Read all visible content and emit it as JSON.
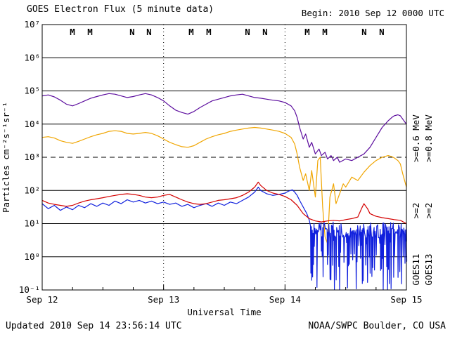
{
  "header": {
    "title": "GOES Electron Flux (5 minute data)",
    "begin": "Begin: 2010 Sep 12 0000 UTC"
  },
  "footer": {
    "updated": "Updated 2010 Sep 14 23:56:14 UTC",
    "source": "NOAA/SWPC Boulder, CO USA"
  },
  "colors": {
    "purple": "#5c0d9e",
    "orange": "#f0a500",
    "blue": "#1020dd",
    "red": "#d40000",
    "grid": "#000000",
    "text": "#000000",
    "background": "#ffffff"
  },
  "chart_data": {
    "type": "line",
    "title": "GOES Electron Flux (5 minute data)",
    "xlabel": "Universal Time",
    "ylabel": "Particles cm⁻²s⁻¹sr⁻¹",
    "x_axis": {
      "range_days": [
        0,
        3
      ],
      "ticks": [
        {
          "t": 0,
          "label": "Sep 12"
        },
        {
          "t": 1,
          "label": "Sep 13"
        },
        {
          "t": 2,
          "label": "Sep 14"
        },
        {
          "t": 3,
          "label": "Sep 15"
        }
      ],
      "minor_tick_days": 0.25,
      "day_gridlines_dotted": [
        1,
        2
      ]
    },
    "y_axis": {
      "scale": "log10",
      "log_range": [
        -1,
        7
      ],
      "tick_labels": [
        "10⁻¹",
        "10⁰",
        "10¹",
        "10²",
        "10³",
        "10⁴",
        "10⁵",
        "10⁶",
        "10⁷"
      ],
      "gridlines": "solid each decade"
    },
    "threshold": {
      "log_value": 3,
      "style": "dashed"
    },
    "event_markers": [
      {
        "t": 0.249,
        "label": "M",
        "satellite": "GOES13",
        "color": "#d40000"
      },
      {
        "t": 0.394,
        "label": "M",
        "satellite": "GOES11",
        "color": "#1020dd"
      },
      {
        "t": 0.741,
        "label": "N",
        "satellite": "GOES13",
        "color": "#d40000"
      },
      {
        "t": 0.88,
        "label": "N",
        "satellite": "GOES11",
        "color": "#1020dd"
      },
      {
        "t": 1.227,
        "label": "M",
        "satellite": "GOES13",
        "color": "#d40000"
      },
      {
        "t": 1.372,
        "label": "M",
        "satellite": "GOES11",
        "color": "#1020dd"
      },
      {
        "t": 1.691,
        "label": "N",
        "satellite": "GOES13",
        "color": "#d40000"
      },
      {
        "t": 1.835,
        "label": "N",
        "satellite": "GOES11",
        "color": "#1020dd"
      },
      {
        "t": 2.183,
        "label": "M",
        "satellite": "GOES13",
        "color": "#d40000"
      },
      {
        "t": 2.328,
        "label": "M",
        "satellite": "GOES11",
        "color": "#1020dd"
      },
      {
        "t": 2.652,
        "label": "N",
        "satellite": "GOES13",
        "color": "#d40000"
      },
      {
        "t": 2.797,
        "label": "N",
        "satellite": "GOES11",
        "color": "#1020dd"
      }
    ],
    "right_labels": [
      {
        "text": ">=0.6 MeV",
        "color": "#5c0d9e"
      },
      {
        "text": ">=0.8 MeV",
        "color": "#f0a500"
      },
      {
        "text": ">=2",
        "color": "#1020dd"
      },
      {
        "text": ">=2",
        "color": "#d40000"
      },
      {
        "text": "GOES11",
        "color": "#111111"
      },
      {
        "text": "GOES13",
        "color": "#111111"
      }
    ],
    "values_are": "pairs of [time_days_since_Sep12_0000UTC, log10(flux particles cm-2 s-1 sr-1)]",
    "series": [
      {
        "name": "GOES11 >=0.6 MeV",
        "color": "#5c0d9e",
        "log_points": [
          [
            0,
            4.85
          ],
          [
            0.05,
            4.88
          ],
          [
            0.1,
            4.82
          ],
          [
            0.15,
            4.72
          ],
          [
            0.2,
            4.6
          ],
          [
            0.25,
            4.55
          ],
          [
            0.3,
            4.62
          ],
          [
            0.35,
            4.7
          ],
          [
            0.4,
            4.78
          ],
          [
            0.45,
            4.83
          ],
          [
            0.5,
            4.88
          ],
          [
            0.55,
            4.92
          ],
          [
            0.6,
            4.9
          ],
          [
            0.65,
            4.85
          ],
          [
            0.7,
            4.8
          ],
          [
            0.75,
            4.83
          ],
          [
            0.8,
            4.88
          ],
          [
            0.85,
            4.92
          ],
          [
            0.9,
            4.88
          ],
          [
            0.95,
            4.8
          ],
          [
            1,
            4.7
          ],
          [
            1.05,
            4.55
          ],
          [
            1.1,
            4.42
          ],
          [
            1.15,
            4.35
          ],
          [
            1.2,
            4.3
          ],
          [
            1.25,
            4.38
          ],
          [
            1.3,
            4.5
          ],
          [
            1.35,
            4.6
          ],
          [
            1.4,
            4.7
          ],
          [
            1.45,
            4.75
          ],
          [
            1.5,
            4.8
          ],
          [
            1.55,
            4.85
          ],
          [
            1.6,
            4.88
          ],
          [
            1.65,
            4.9
          ],
          [
            1.7,
            4.85
          ],
          [
            1.75,
            4.8
          ],
          [
            1.8,
            4.78
          ],
          [
            1.85,
            4.75
          ],
          [
            1.9,
            4.72
          ],
          [
            1.95,
            4.7
          ],
          [
            2,
            4.65
          ],
          [
            2.05,
            4.55
          ],
          [
            2.08,
            4.4
          ],
          [
            2.1,
            4.2
          ],
          [
            2.12,
            3.9
          ],
          [
            2.15,
            3.55
          ],
          [
            2.17,
            3.7
          ],
          [
            2.2,
            3.3
          ],
          [
            2.22,
            3.45
          ],
          [
            2.25,
            3.1
          ],
          [
            2.28,
            3.25
          ],
          [
            2.3,
            3.05
          ],
          [
            2.33,
            3.15
          ],
          [
            2.35,
            2.95
          ],
          [
            2.38,
            3.05
          ],
          [
            2.4,
            2.9
          ],
          [
            2.43,
            3
          ],
          [
            2.45,
            2.85
          ],
          [
            2.5,
            2.95
          ],
          [
            2.55,
            2.9
          ],
          [
            2.6,
            3
          ],
          [
            2.65,
            3.1
          ],
          [
            2.7,
            3.3
          ],
          [
            2.75,
            3.6
          ],
          [
            2.8,
            3.9
          ],
          [
            2.85,
            4.1
          ],
          [
            2.88,
            4.2
          ],
          [
            2.9,
            4.25
          ],
          [
            2.93,
            4.28
          ],
          [
            2.95,
            4.25
          ],
          [
            2.97,
            4.15
          ],
          [
            3,
            4
          ]
        ]
      },
      {
        "name": "GOES13 >=0.8 MeV",
        "color": "#f0a500",
        "log_points": [
          [
            0,
            3.6
          ],
          [
            0.05,
            3.62
          ],
          [
            0.1,
            3.58
          ],
          [
            0.15,
            3.5
          ],
          [
            0.2,
            3.45
          ],
          [
            0.25,
            3.42
          ],
          [
            0.3,
            3.48
          ],
          [
            0.35,
            3.55
          ],
          [
            0.4,
            3.62
          ],
          [
            0.45,
            3.68
          ],
          [
            0.5,
            3.72
          ],
          [
            0.55,
            3.78
          ],
          [
            0.6,
            3.8
          ],
          [
            0.65,
            3.78
          ],
          [
            0.7,
            3.72
          ],
          [
            0.75,
            3.7
          ],
          [
            0.8,
            3.72
          ],
          [
            0.85,
            3.75
          ],
          [
            0.9,
            3.72
          ],
          [
            0.95,
            3.65
          ],
          [
            1,
            3.55
          ],
          [
            1.05,
            3.45
          ],
          [
            1.1,
            3.38
          ],
          [
            1.15,
            3.32
          ],
          [
            1.2,
            3.3
          ],
          [
            1.25,
            3.35
          ],
          [
            1.3,
            3.45
          ],
          [
            1.35,
            3.55
          ],
          [
            1.4,
            3.62
          ],
          [
            1.45,
            3.68
          ],
          [
            1.5,
            3.72
          ],
          [
            1.55,
            3.78
          ],
          [
            1.6,
            3.82
          ],
          [
            1.65,
            3.85
          ],
          [
            1.7,
            3.88
          ],
          [
            1.75,
            3.9
          ],
          [
            1.8,
            3.88
          ],
          [
            1.85,
            3.85
          ],
          [
            1.9,
            3.82
          ],
          [
            1.95,
            3.78
          ],
          [
            2,
            3.72
          ],
          [
            2.05,
            3.6
          ],
          [
            2.08,
            3.4
          ],
          [
            2.1,
            3.1
          ],
          [
            2.12,
            2.7
          ],
          [
            2.15,
            2.3
          ],
          [
            2.17,
            2.5
          ],
          [
            2.2,
            2
          ],
          [
            2.22,
            2.6
          ],
          [
            2.25,
            1.8
          ],
          [
            2.27,
            2.9
          ],
          [
            2.29,
            3
          ],
          [
            2.31,
            1.5
          ],
          [
            2.33,
            0.6
          ],
          [
            2.35,
            0.4
          ],
          [
            2.37,
            1.8
          ],
          [
            2.4,
            2.2
          ],
          [
            2.42,
            1.6
          ],
          [
            2.45,
            1.9
          ],
          [
            2.48,
            2.2
          ],
          [
            2.5,
            2.1
          ],
          [
            2.55,
            2.4
          ],
          [
            2.6,
            2.3
          ],
          [
            2.65,
            2.55
          ],
          [
            2.7,
            2.75
          ],
          [
            2.75,
            2.9
          ],
          [
            2.8,
            3
          ],
          [
            2.85,
            3.05
          ],
          [
            2.88,
            3.02
          ],
          [
            2.9,
            2.98
          ],
          [
            2.93,
            2.9
          ],
          [
            2.95,
            2.8
          ],
          [
            2.97,
            2.5
          ],
          [
            3,
            2.1
          ]
        ]
      },
      {
        "name": "GOES11 >=2 MeV",
        "color": "#1020dd",
        "log_points": [
          [
            0,
            1.6
          ],
          [
            0.05,
            1.45
          ],
          [
            0.1,
            1.55
          ],
          [
            0.15,
            1.4
          ],
          [
            0.2,
            1.5
          ],
          [
            0.25,
            1.42
          ],
          [
            0.3,
            1.55
          ],
          [
            0.35,
            1.48
          ],
          [
            0.4,
            1.6
          ],
          [
            0.45,
            1.52
          ],
          [
            0.5,
            1.62
          ],
          [
            0.55,
            1.55
          ],
          [
            0.6,
            1.68
          ],
          [
            0.65,
            1.6
          ],
          [
            0.7,
            1.72
          ],
          [
            0.75,
            1.65
          ],
          [
            0.8,
            1.7
          ],
          [
            0.85,
            1.62
          ],
          [
            0.9,
            1.68
          ],
          [
            0.95,
            1.6
          ],
          [
            1,
            1.65
          ],
          [
            1.05,
            1.58
          ],
          [
            1.1,
            1.62
          ],
          [
            1.15,
            1.52
          ],
          [
            1.2,
            1.58
          ],
          [
            1.25,
            1.48
          ],
          [
            1.3,
            1.55
          ],
          [
            1.35,
            1.6
          ],
          [
            1.4,
            1.52
          ],
          [
            1.45,
            1.62
          ],
          [
            1.5,
            1.55
          ],
          [
            1.55,
            1.65
          ],
          [
            1.6,
            1.6
          ],
          [
            1.65,
            1.7
          ],
          [
            1.7,
            1.8
          ],
          [
            1.75,
            1.95
          ],
          [
            1.78,
            2.1
          ],
          [
            1.8,
            2
          ],
          [
            1.85,
            1.9
          ],
          [
            1.9,
            1.85
          ],
          [
            1.95,
            1.88
          ],
          [
            2,
            1.92
          ],
          [
            2.03,
            1.98
          ],
          [
            2.06,
            2.02
          ],
          [
            2.08,
            1.95
          ],
          [
            2.1,
            1.85
          ],
          [
            2.12,
            1.7
          ],
          [
            2.15,
            1.5
          ],
          [
            2.18,
            1.3
          ],
          [
            2.2,
            1.1
          ]
        ],
        "noise": {
          "t_start": 2.21,
          "t_end": 3.0,
          "steps": 110,
          "log_top_min": 0.55,
          "log_top_max": 1.05,
          "log_dip_min": -1.0,
          "dip_probability": 0.6,
          "seed": 73
        },
        "end_point": [
          3,
          1.0
        ]
      },
      {
        "name": "GOES13 >=2 MeV",
        "color": "#d40000",
        "log_points": [
          [
            0,
            1.7
          ],
          [
            0.05,
            1.62
          ],
          [
            0.1,
            1.58
          ],
          [
            0.15,
            1.55
          ],
          [
            0.2,
            1.52
          ],
          [
            0.25,
            1.55
          ],
          [
            0.3,
            1.62
          ],
          [
            0.35,
            1.68
          ],
          [
            0.4,
            1.72
          ],
          [
            0.45,
            1.75
          ],
          [
            0.5,
            1.78
          ],
          [
            0.55,
            1.82
          ],
          [
            0.6,
            1.85
          ],
          [
            0.65,
            1.88
          ],
          [
            0.7,
            1.9
          ],
          [
            0.75,
            1.88
          ],
          [
            0.8,
            1.85
          ],
          [
            0.85,
            1.8
          ],
          [
            0.9,
            1.78
          ],
          [
            0.95,
            1.8
          ],
          [
            1,
            1.85
          ],
          [
            1.05,
            1.88
          ],
          [
            1.1,
            1.8
          ],
          [
            1.15,
            1.72
          ],
          [
            1.2,
            1.65
          ],
          [
            1.25,
            1.6
          ],
          [
            1.3,
            1.58
          ],
          [
            1.35,
            1.6
          ],
          [
            1.4,
            1.65
          ],
          [
            1.45,
            1.7
          ],
          [
            1.5,
            1.72
          ],
          [
            1.55,
            1.75
          ],
          [
            1.6,
            1.78
          ],
          [
            1.65,
            1.85
          ],
          [
            1.7,
            1.95
          ],
          [
            1.75,
            2.1
          ],
          [
            1.78,
            2.25
          ],
          [
            1.8,
            2.15
          ],
          [
            1.85,
            2
          ],
          [
            1.9,
            1.92
          ],
          [
            1.95,
            1.88
          ],
          [
            2,
            1.82
          ],
          [
            2.05,
            1.72
          ],
          [
            2.1,
            1.55
          ],
          [
            2.15,
            1.3
          ],
          [
            2.2,
            1.15
          ],
          [
            2.25,
            1.08
          ],
          [
            2.3,
            1.05
          ],
          [
            2.35,
            1.08
          ],
          [
            2.4,
            1.1
          ],
          [
            2.45,
            1.08
          ],
          [
            2.5,
            1.12
          ],
          [
            2.55,
            1.15
          ],
          [
            2.6,
            1.2
          ],
          [
            2.63,
            1.45
          ],
          [
            2.65,
            1.6
          ],
          [
            2.68,
            1.45
          ],
          [
            2.7,
            1.3
          ],
          [
            2.75,
            1.22
          ],
          [
            2.8,
            1.18
          ],
          [
            2.85,
            1.15
          ],
          [
            2.9,
            1.12
          ],
          [
            2.95,
            1.1
          ],
          [
            3,
            1
          ]
        ]
      }
    ]
  }
}
